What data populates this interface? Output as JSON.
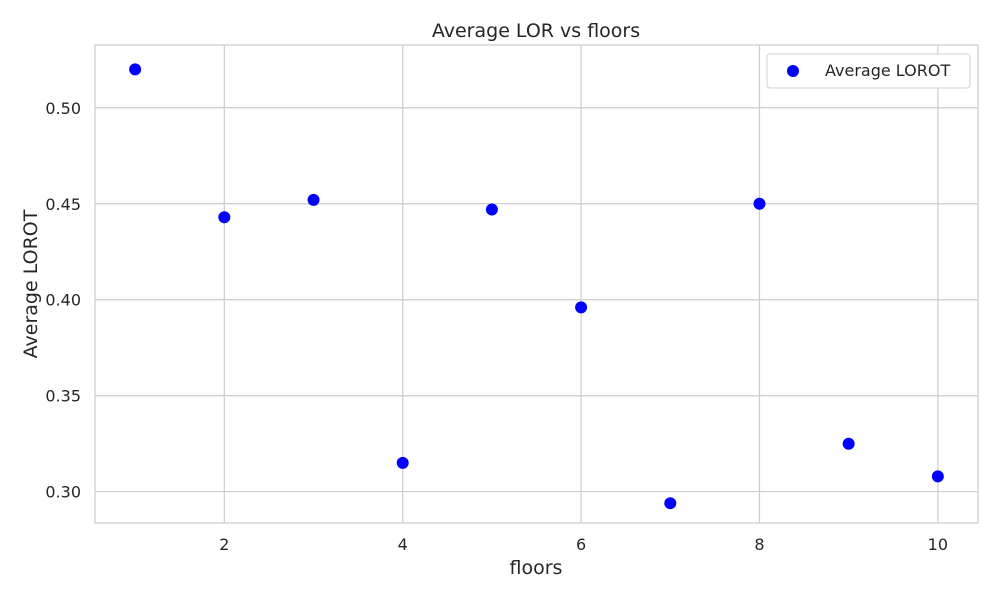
{
  "chart_data": {
    "type": "scatter",
    "title": "Average LOR vs floors",
    "xlabel": "floors",
    "ylabel": "Average LOROT",
    "x_ticks": [
      2,
      4,
      6,
      8,
      10
    ],
    "y_ticks": [
      "0.30",
      "0.35",
      "0.40",
      "0.45",
      "0.50"
    ],
    "xlim": [
      0.55,
      10.45
    ],
    "ylim": [
      0.2837,
      0.5327
    ],
    "grid": true,
    "legend_position": "top-right",
    "series": [
      {
        "name": "Average LOROT",
        "color": "#0000ff",
        "x": [
          1,
          2,
          3,
          4,
          5,
          6,
          7,
          8,
          9,
          10
        ],
        "y": [
          0.52,
          0.443,
          0.452,
          0.315,
          0.447,
          0.396,
          0.294,
          0.45,
          0.325,
          0.308
        ]
      }
    ]
  }
}
